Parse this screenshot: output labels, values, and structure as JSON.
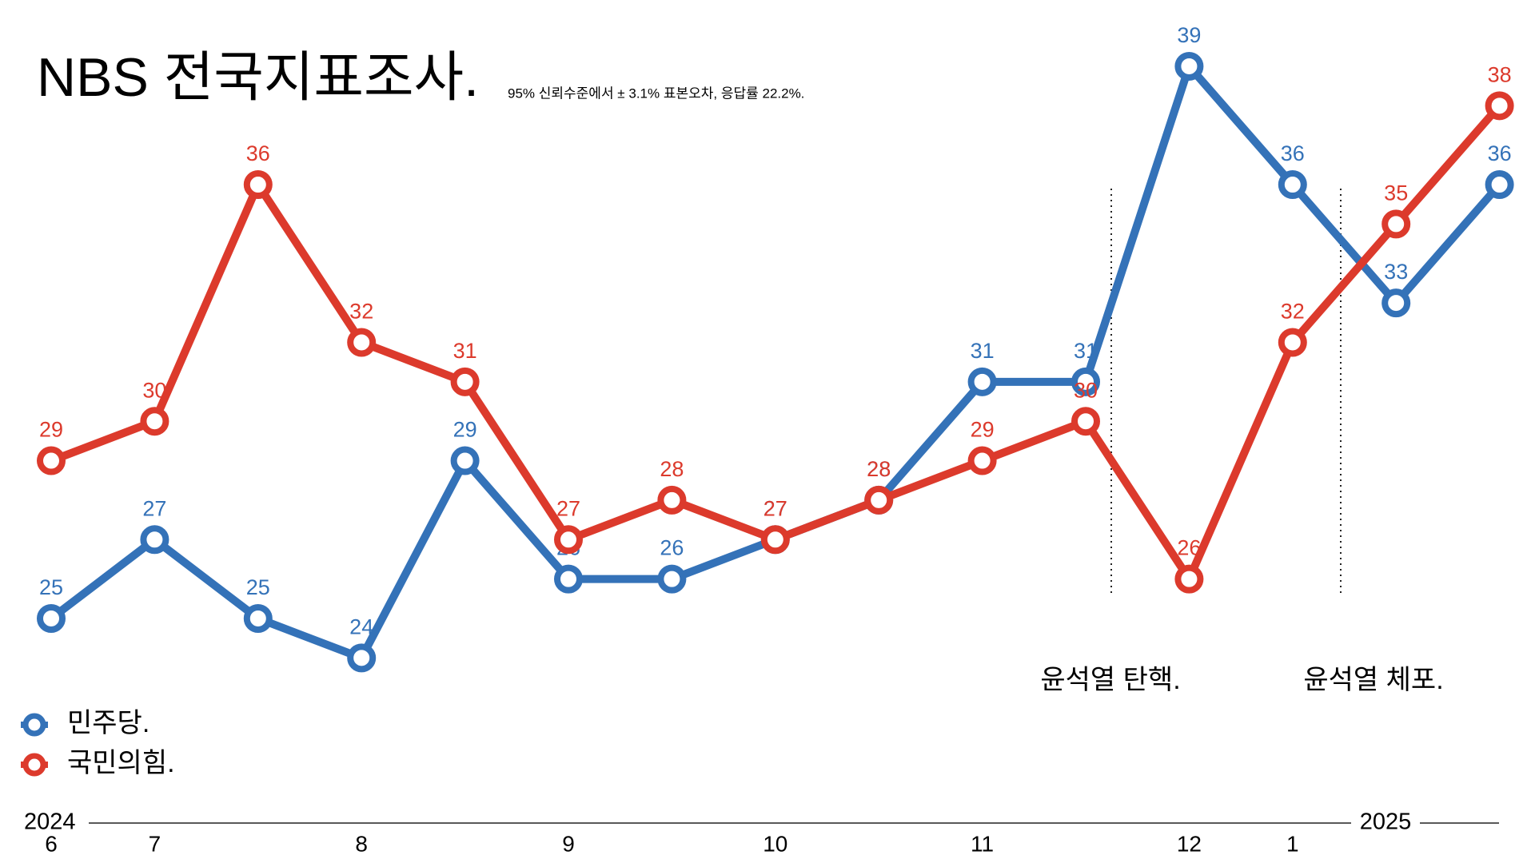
{
  "chart_data": {
    "type": "line",
    "title": "NBS 전국지표조사.",
    "subtitle": "95% 신뢰수준에서 ± 3.1% 표본오차, 응답률 22.2%.",
    "categories": [
      "6",
      "7",
      null,
      "8",
      null,
      "9",
      null,
      "10",
      null,
      "11",
      null,
      "12",
      "1",
      null,
      null
    ],
    "years": [
      "2024",
      "2025"
    ],
    "annotations": [
      "윤석열 탄핵.",
      "윤석열 체포."
    ],
    "ylim": [
      23,
      40
    ],
    "series": [
      {
        "name": "민주당.",
        "color": "#3472b8",
        "values": [
          25,
          27,
          25,
          24,
          29,
          26,
          26,
          27,
          28,
          31,
          31,
          39,
          36,
          33,
          36
        ]
      },
      {
        "name": "국민의힘.",
        "color": "#dc3a2c",
        "values": [
          29,
          30,
          36,
          32,
          31,
          27,
          28,
          27,
          28,
          29,
          30,
          26,
          32,
          35,
          38
        ]
      }
    ]
  }
}
